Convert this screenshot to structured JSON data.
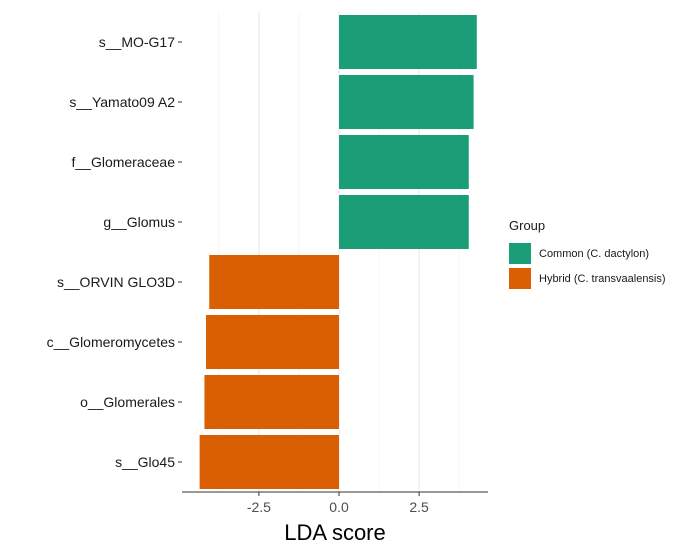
{
  "chart_data": {
    "type": "bar",
    "orientation": "horizontal",
    "title": "",
    "xlabel": "LDA score",
    "ylabel": "",
    "xlim": [
      -4.9,
      4.65
    ],
    "x_ticks": [
      -2.5,
      0.0,
      2.5
    ],
    "x_tick_labels": [
      "-2.5",
      "0.0",
      "2.5"
    ],
    "grid": true,
    "legend_position": "right",
    "categories": [
      "s__MO-G17",
      "s__Yamato09 A2",
      "f__Glomeraceae",
      "g__Glomus",
      "s__ORVIN GLO3D",
      "c__Glomeromycetes",
      "o__Glomerales",
      "s__Glo45"
    ],
    "values": [
      4.3,
      4.2,
      4.05,
      4.05,
      -4.05,
      -4.15,
      -4.2,
      -4.35
    ],
    "groups": [
      "Common (C. dactylon)",
      "Common (C. dactylon)",
      "Common (C. dactylon)",
      "Common (C. dactylon)",
      "Hybrid (C. transvaalensis)",
      "Hybrid (C. transvaalensis)",
      "Hybrid (C. transvaalensis)",
      "Hybrid (C. transvaalensis)"
    ],
    "legend": {
      "title": "Group",
      "entries": [
        {
          "label": "Common (C. dactylon)",
          "color": "#1b9e77"
        },
        {
          "label": "Hybrid (C. transvaalensis)",
          "color": "#d95f02"
        }
      ]
    }
  }
}
